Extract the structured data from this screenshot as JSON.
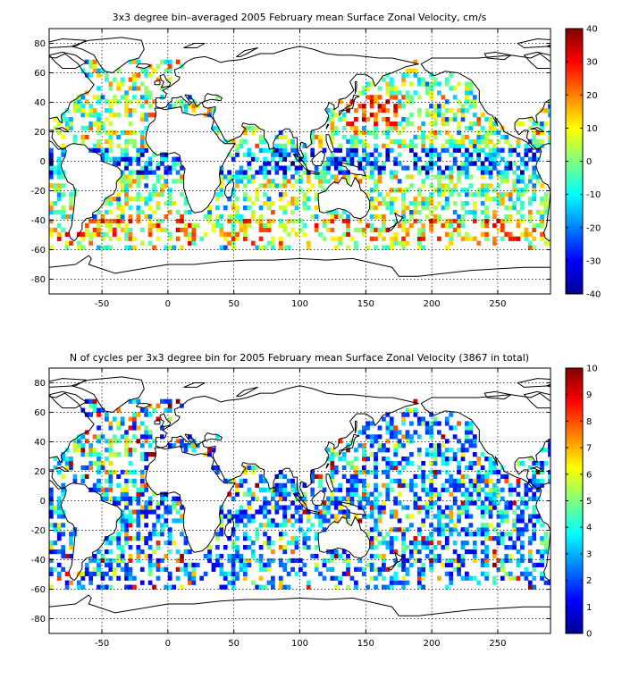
{
  "chart_data": [
    {
      "type": "heatmap",
      "title": "3x3 degree bin–averaged 2005 February mean Surface Zonal Velocity, cm/s",
      "xlabel": "",
      "ylabel": "",
      "xlim": [
        -90,
        290
      ],
      "ylim": [
        -90,
        90
      ],
      "xticks": [
        -50,
        0,
        50,
        100,
        150,
        200,
        250
      ],
      "yticks": [
        80,
        60,
        40,
        20,
        0,
        -20,
        -40,
        -60,
        -80
      ],
      "grid": true,
      "bin_size_deg": 3,
      "colorbar": {
        "min": -40,
        "max": 40,
        "ticks": [
          40,
          30,
          20,
          10,
          0,
          -10,
          -20,
          -30,
          -40
        ],
        "colormap": "jet",
        "placement": "right"
      },
      "value_range": [
        -40,
        40
      ],
      "seed": 17
    },
    {
      "type": "heatmap",
      "title": "N of cycles per 3x3 degree bin for 2005 February mean Surface Zonal Velocity (3867 in total)",
      "xlabel": "",
      "ylabel": "",
      "xlim": [
        -90,
        290
      ],
      "ylim": [
        -90,
        90
      ],
      "xticks": [
        -50,
        0,
        50,
        100,
        150,
        200,
        250
      ],
      "yticks": [
        80,
        60,
        40,
        20,
        0,
        -20,
        -40,
        -60,
        -80
      ],
      "grid": true,
      "bin_size_deg": 3,
      "colorbar": {
        "min": 0,
        "max": 10,
        "ticks": [
          10,
          9,
          8,
          7,
          6,
          5,
          4,
          3,
          2,
          1,
          0
        ],
        "colormap": "jet",
        "placement": "right"
      },
      "value_range": [
        0,
        10
      ],
      "seed": 17
    }
  ]
}
